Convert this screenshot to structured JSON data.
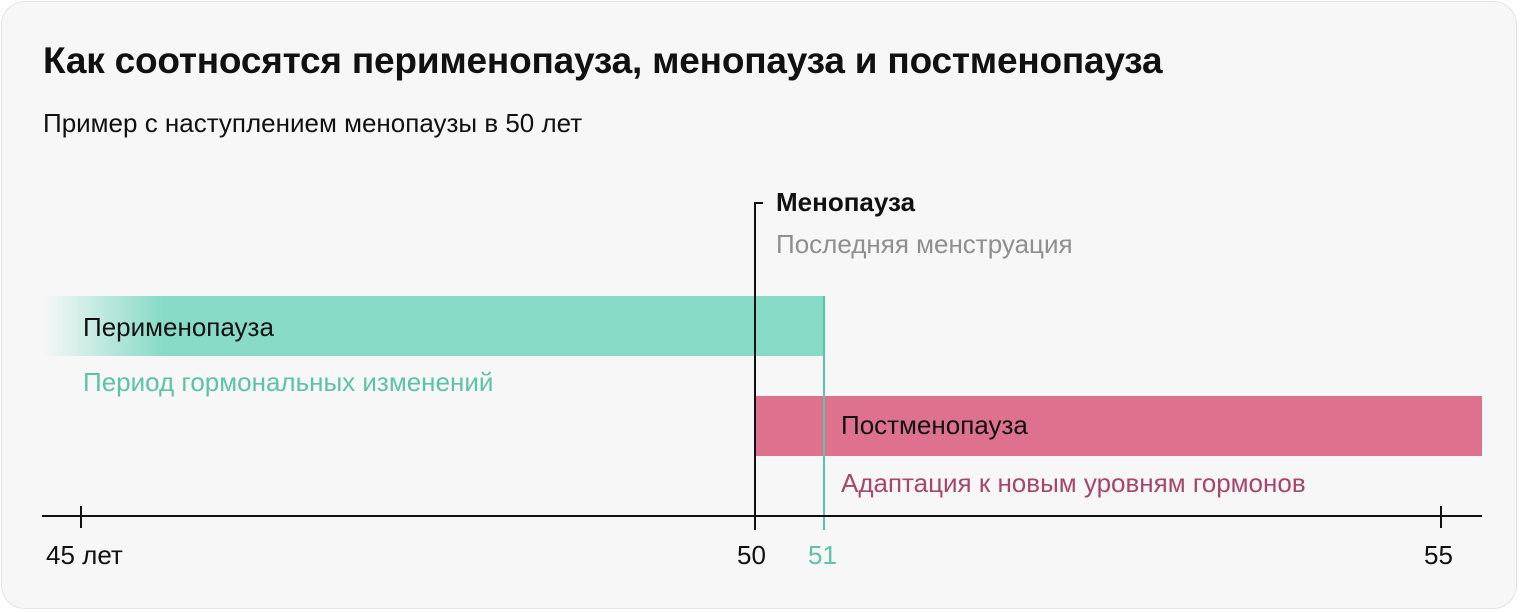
{
  "title": "Как соотносятся перименопауза, менопауза и постменопауза",
  "subtitle": "Пример с наступлением менопаузы в 50 лет",
  "menopause": {
    "label": "Менопауза",
    "description": "Последняя менструация"
  },
  "perimenopause": {
    "label": "Перименопауза",
    "description": "Период гормональных изменений",
    "color": "#87dbc7",
    "text_color": "#5cc3a6"
  },
  "postmenopause": {
    "label": "Постменопауза",
    "description": "Адаптация к новым уровням гормонов",
    "color": "#de728e",
    "text_color": "#a8466a"
  },
  "axis": {
    "ticks": [
      {
        "label": "45 лет"
      },
      {
        "label": "50"
      },
      {
        "label": "51"
      },
      {
        "label": "55"
      }
    ]
  }
}
